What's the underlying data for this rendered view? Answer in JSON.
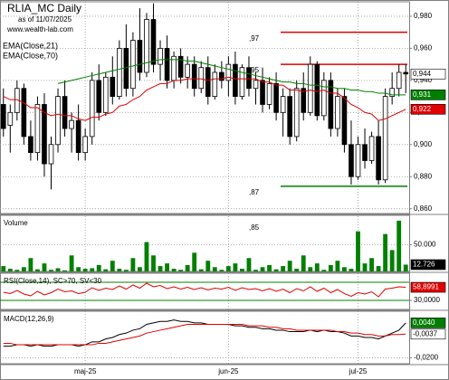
{
  "chart_data": [
    {
      "type": "candlestick",
      "title": "RLIA_MC Daily",
      "subtitle": "as of 11/07/2025",
      "source": "www.wealth-lab.com",
      "open": [
        0.925,
        0.912,
        0.92,
        0.935,
        0.905,
        0.895,
        0.925,
        0.888,
        0.9,
        0.93,
        0.91,
        0.915,
        0.895,
        0.905,
        0.94,
        0.92,
        0.942,
        0.93,
        0.96,
        0.935,
        0.965,
        0.945,
        0.978,
        0.95,
        0.96,
        0.94,
        0.955,
        0.942,
        0.95,
        0.935,
        0.948,
        0.93,
        0.945,
        0.94,
        0.95,
        0.93,
        0.948,
        0.935,
        0.94,
        0.925,
        0.938,
        0.92,
        0.93,
        0.905,
        0.935,
        0.92,
        0.95,
        0.918,
        0.94,
        0.91,
        0.93,
        0.9,
        0.88,
        0.9,
        0.89,
        0.905,
        0.878,
        0.93,
        0.935,
        0.945
      ],
      "high": [
        0.935,
        0.925,
        0.94,
        0.938,
        0.915,
        0.93,
        0.932,
        0.905,
        0.935,
        0.94,
        0.92,
        0.925,
        0.91,
        0.945,
        0.95,
        0.945,
        0.955,
        0.965,
        0.975,
        0.97,
        0.985,
        0.982,
        0.988,
        0.965,
        0.968,
        0.958,
        0.96,
        0.955,
        0.955,
        0.952,
        0.955,
        0.95,
        0.952,
        0.955,
        0.958,
        0.95,
        0.955,
        0.945,
        0.948,
        0.942,
        0.945,
        0.935,
        0.935,
        0.94,
        0.945,
        0.955,
        0.952,
        0.945,
        0.945,
        0.935,
        0.935,
        0.915,
        0.905,
        0.91,
        0.908,
        0.915,
        0.935,
        0.945,
        0.95,
        0.95
      ],
      "low": [
        0.905,
        0.895,
        0.915,
        0.9,
        0.89,
        0.89,
        0.88,
        0.872,
        0.895,
        0.905,
        0.895,
        0.89,
        0.89,
        0.9,
        0.915,
        0.918,
        0.925,
        0.928,
        0.93,
        0.93,
        0.94,
        0.942,
        0.945,
        0.94,
        0.935,
        0.935,
        0.938,
        0.935,
        0.93,
        0.932,
        0.925,
        0.928,
        0.935,
        0.93,
        0.925,
        0.928,
        0.93,
        0.925,
        0.92,
        0.922,
        0.915,
        0.905,
        0.9,
        0.902,
        0.915,
        0.918,
        0.915,
        0.915,
        0.905,
        0.905,
        0.895,
        0.875,
        0.878,
        0.885,
        0.888,
        0.875,
        0.876,
        0.925,
        0.93,
        0.932
      ],
      "close": [
        0.91,
        0.92,
        0.935,
        0.905,
        0.895,
        0.925,
        0.888,
        0.9,
        0.93,
        0.91,
        0.915,
        0.895,
        0.905,
        0.94,
        0.92,
        0.942,
        0.93,
        0.96,
        0.935,
        0.965,
        0.945,
        0.978,
        0.95,
        0.96,
        0.94,
        0.955,
        0.942,
        0.95,
        0.935,
        0.948,
        0.93,
        0.945,
        0.94,
        0.95,
        0.93,
        0.948,
        0.935,
        0.94,
        0.925,
        0.938,
        0.92,
        0.93,
        0.905,
        0.935,
        0.92,
        0.95,
        0.918,
        0.94,
        0.91,
        0.93,
        0.9,
        0.88,
        0.9,
        0.89,
        0.905,
        0.878,
        0.93,
        0.935,
        0.945,
        0.944
      ],
      "up_color": "#ffffff",
      "down_color": "#000000",
      "overlays": [
        {
          "name": "EMA(Close,21)",
          "color": "#e00000",
          "values": [
            0.93,
            0.928,
            0.928,
            0.926,
            0.923,
            0.923,
            0.92,
            0.918,
            0.919,
            0.918,
            0.918,
            0.916,
            0.915,
            0.917,
            0.917,
            0.919,
            0.92,
            0.924,
            0.925,
            0.928,
            0.93,
            0.934,
            0.936,
            0.938,
            0.938,
            0.94,
            0.94,
            0.941,
            0.941,
            0.941,
            0.94,
            0.941,
            0.941,
            0.942,
            0.941,
            0.941,
            0.941,
            0.941,
            0.939,
            0.939,
            0.937,
            0.937,
            0.934,
            0.934,
            0.933,
            0.934,
            0.933,
            0.934,
            0.932,
            0.932,
            0.929,
            0.925,
            0.923,
            0.92,
            0.919,
            0.915,
            0.916,
            0.918,
            0.92,
            0.922
          ]
        },
        {
          "name": "EMA(Close,70)",
          "color": "#008000",
          "values": [
            null,
            null,
            null,
            null,
            null,
            null,
            null,
            null,
            0.938,
            0.939,
            0.94,
            0.941,
            0.942,
            0.943,
            0.944,
            0.945,
            0.946,
            0.947,
            0.948,
            0.949,
            0.95,
            0.951,
            0.952,
            0.953,
            0.953,
            0.953,
            0.953,
            0.952,
            0.952,
            0.951,
            0.95,
            0.949,
            0.948,
            0.947,
            0.946,
            0.945,
            0.944,
            0.943,
            0.942,
            0.941,
            0.94,
            0.939,
            0.939,
            0.938,
            0.938,
            0.937,
            0.937,
            0.936,
            0.936,
            0.935,
            0.935,
            0.934,
            0.934,
            0.933,
            0.933,
            0.932,
            0.932,
            0.931,
            0.931,
            0.931
          ]
        }
      ],
      "ylim": [
        0.857,
        0.989
      ],
      "yticks": [
        {
          "value": 0.86,
          "label": "0,860"
        },
        {
          "value": 0.88,
          "label": "0,880"
        },
        {
          "value": 0.9,
          "label": "0,900"
        },
        {
          "value": 0.92,
          "label": "0,920"
        },
        {
          "value": 0.94,
          "label": "0,940"
        },
        {
          "value": 0.96,
          "label": "0,960"
        },
        {
          "value": 0.98,
          "label": "0,980"
        }
      ],
      "levels": [
        {
          "value": 0.97,
          "label": ",97",
          "color": "#e00000"
        },
        {
          "value": 0.95,
          "label": ",95",
          "color": "#e00000"
        },
        {
          "value": 0.874,
          "label": ",87",
          "color": "#008000"
        }
      ],
      "markers": [
        {
          "value": 0.944,
          "label": "0,944",
          "color": "#ffffff"
        },
        {
          "value": 0.931,
          "label": "0,931",
          "color": "#008000"
        },
        {
          "value": 0.922,
          "label": "0,922",
          "color": "#e00000"
        }
      ],
      "grid": true
    },
    {
      "type": "bar",
      "title": "Volume",
      "annotation": ",85",
      "color": "#008000",
      "values": [
        10000,
        5000,
        3000,
        8000,
        25000,
        4000,
        15000,
        3000,
        6000,
        2000,
        30000,
        8000,
        5000,
        6000,
        12000,
        4000,
        20000,
        5000,
        3000,
        25000,
        8000,
        55000,
        30000,
        10000,
        15000,
        5000,
        3000,
        12000,
        35000,
        4000,
        20000,
        8000,
        3000,
        10000,
        15000,
        5000,
        25000,
        3000,
        8000,
        12000,
        4000,
        10000,
        20000,
        5000,
        30000,
        8000,
        15000,
        3000,
        12000,
        20000,
        8000,
        5000,
        75000,
        15000,
        25000,
        10000,
        70000,
        40000,
        95000,
        12726
      ],
      "ylim": [
        0,
        105000
      ],
      "yticks": [
        {
          "value": 50000,
          "label": "50.000"
        }
      ],
      "markers": [
        {
          "value": 12726,
          "label": "12.726",
          "color": "#000000"
        }
      ],
      "grid": true
    },
    {
      "type": "line",
      "title": "RSI(Close,14), SC>70, SV<30",
      "series": [
        {
          "color": "#e00000",
          "values": [
            48,
            45,
            52,
            44,
            40,
            50,
            42,
            47,
            55,
            49,
            51,
            45,
            48,
            58,
            52,
            57,
            54,
            62,
            55,
            64,
            57,
            68,
            60,
            63,
            56,
            60,
            55,
            59,
            54,
            58,
            53,
            57,
            55,
            59,
            52,
            58,
            54,
            56,
            51,
            56,
            50,
            55,
            47,
            56,
            51,
            60,
            50,
            57,
            47,
            54,
            45,
            39,
            47,
            44,
            49,
            38,
            55,
            57,
            60,
            58.8991
          ]
        }
      ],
      "ylim": [
        10,
        90
      ],
      "yticks": [
        {
          "value": 30,
          "label": "30,0000"
        }
      ],
      "levels": [
        {
          "value": 70,
          "color": "#008000"
        },
        {
          "value": 30,
          "color": "#008000"
        }
      ],
      "markers": [
        {
          "value": 58.8991,
          "label": "58,8991",
          "color": "#e00000"
        }
      ],
      "grid": false
    },
    {
      "type": "line",
      "title": "MACD(12,26,9)",
      "categories": [
        null,
        null,
        null,
        null,
        null,
        null,
        null,
        null,
        null,
        null,
        null,
        null,
        "maj-25",
        null,
        null,
        null,
        null,
        null,
        null,
        null,
        null,
        null,
        null,
        null,
        null,
        null,
        null,
        null,
        null,
        null,
        null,
        null,
        null,
        "jun-25",
        null,
        null,
        null,
        null,
        null,
        null,
        null,
        null,
        null,
        null,
        null,
        null,
        null,
        null,
        null,
        null,
        null,
        null,
        "jul-25",
        null,
        null,
        null,
        null,
        null,
        null,
        null
      ],
      "series": [
        {
          "color": "#000000",
          "values": [
            -0.012,
            -0.012,
            -0.011,
            -0.011,
            -0.012,
            -0.011,
            -0.012,
            -0.012,
            -0.011,
            -0.011,
            -0.011,
            -0.012,
            -0.011,
            -0.009,
            -0.009,
            -0.007,
            -0.006,
            -0.004,
            -0.003,
            -0.001,
            0,
            0.003,
            0.004,
            0.005,
            0.005,
            0.006,
            0.005,
            0.005,
            0.004,
            0.004,
            0.003,
            0.003,
            0.003,
            0.003,
            0.002,
            0.002,
            0.001,
            0.001,
            0,
            0,
            -0.001,
            -0.001,
            -0.002,
            -0.002,
            -0.002,
            -0.001,
            -0.002,
            -0.001,
            -0.002,
            -0.002,
            -0.003,
            -0.005,
            -0.005,
            -0.006,
            -0.006,
            -0.007,
            -0.005,
            -0.003,
            -0.001,
            0.004
          ]
        },
        {
          "color": "#e00000",
          "values": [
            -0.01,
            -0.01,
            -0.011,
            -0.011,
            -0.011,
            -0.011,
            -0.011,
            -0.011,
            -0.011,
            -0.011,
            -0.011,
            -0.011,
            -0.011,
            -0.011,
            -0.01,
            -0.01,
            -0.009,
            -0.008,
            -0.007,
            -0.006,
            -0.005,
            -0.003,
            -0.002,
            -0.001,
            0,
            0.001,
            0.002,
            0.003,
            0.003,
            0.003,
            0.003,
            0.003,
            0.003,
            0.003,
            0.003,
            0.003,
            0.002,
            0.002,
            0.002,
            0.001,
            0.001,
            0,
            0,
            -0.001,
            -0.001,
            -0.001,
            -0.001,
            -0.001,
            -0.001,
            -0.002,
            -0.002,
            -0.003,
            -0.003,
            -0.004,
            -0.004,
            -0.005,
            -0.005,
            -0.004,
            -0.004,
            -0.0037
          ]
        }
      ],
      "ylim": [
        -0.024,
        0.012
      ],
      "yticks": [
        {
          "value": -0.02,
          "label": "-0,0200"
        }
      ],
      "markers": [
        {
          "value": 0.004,
          "label": "0,0040",
          "color": "#008000"
        },
        {
          "value": -0.0037,
          "label": "-0,0037",
          "color": "#ffffff"
        }
      ],
      "grid": true
    }
  ]
}
